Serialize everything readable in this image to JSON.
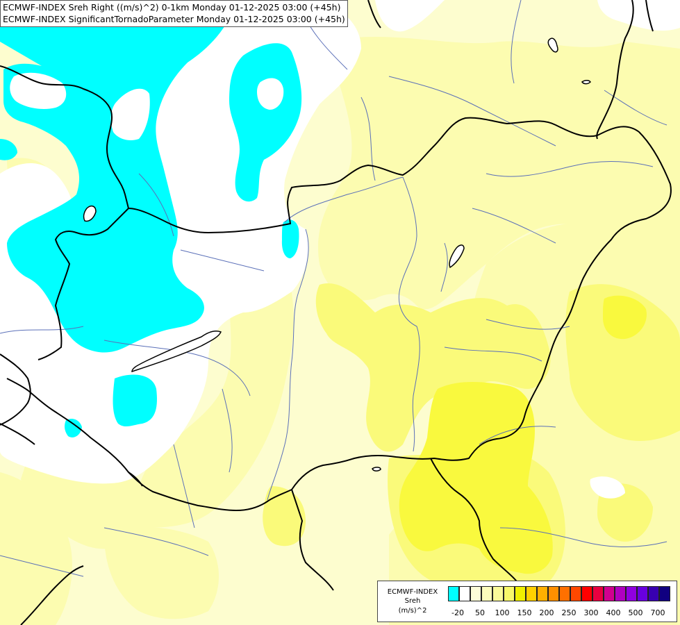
{
  "header": {
    "line1": "ECMWF-INDEX Sreh Right ((m/s)^2) 0-1km Monday 01-12-2025 03:00 (+45h)",
    "line2": "ECMWF-INDEX SignificantTornadoParameter Monday 01-12-2025 03:00 (+45h)"
  },
  "legend": {
    "source": "ECMWF-INDEX",
    "variable": "Sreh",
    "unit": "(m/s)^2",
    "colors": [
      "#00ffff",
      "#ffffff",
      "#fdfdd8",
      "#fcfcbc",
      "#fafa9a",
      "#f8f86a",
      "#f0f000",
      "#ffd000",
      "#ffb000",
      "#ff9000",
      "#ff7000",
      "#ff4800",
      "#ff0000",
      "#e80040",
      "#d00090",
      "#b000c0",
      "#9000e0",
      "#6800e0",
      "#3800b0",
      "#100080"
    ],
    "ticks": [
      "-20",
      "50",
      "100",
      "150",
      "200",
      "250",
      "300",
      "400",
      "500",
      "700"
    ]
  },
  "map": {
    "colors": {
      "cyan": "#00ffff",
      "white": "#ffffff",
      "pale_yellow": "#fdfdcf",
      "light_yellow": "#fcfcb0",
      "medium_yellow": "#fafa7a",
      "strong_yellow": "#f9f93e",
      "border": "#000000",
      "river": "#5a6fb8"
    }
  }
}
